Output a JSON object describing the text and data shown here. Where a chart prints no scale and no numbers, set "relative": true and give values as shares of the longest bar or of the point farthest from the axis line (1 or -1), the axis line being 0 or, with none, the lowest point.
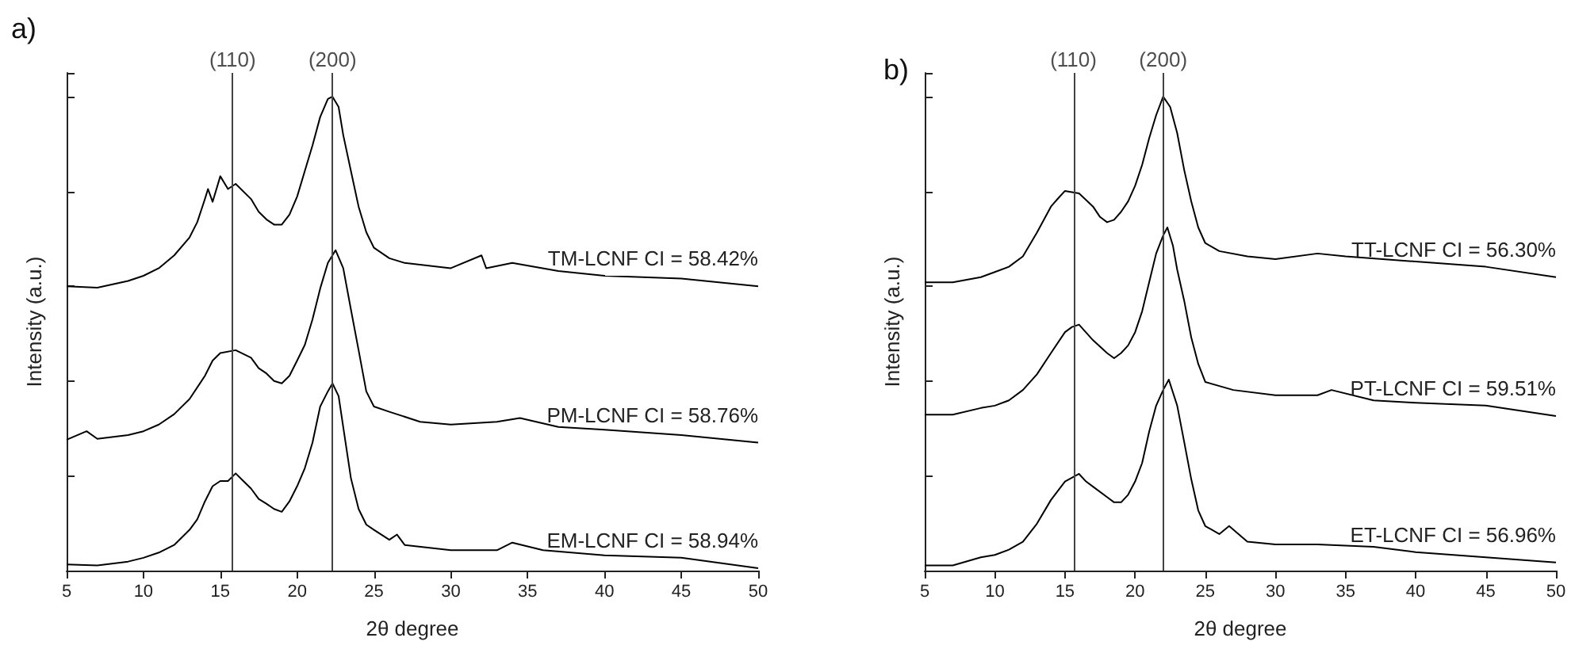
{
  "chart_data": [
    {
      "type": "line",
      "title": "a)",
      "xlabel": "2θ degree",
      "ylabel": "Intensity (a.u.)",
      "relative": true,
      "xlim": [
        5,
        50
      ],
      "xticks": [
        5,
        10,
        15,
        20,
        25,
        30,
        35,
        40,
        45,
        50
      ],
      "tick_labels": "x",
      "marker": "none",
      "line_style": "solid",
      "grid": false,
      "ref_lines": [
        {
          "axis": "x",
          "value": 15.8
        },
        {
          "axis": "x",
          "value": 22.3
        }
      ],
      "annotations": [
        {
          "text": "(110)",
          "x": 15.8,
          "y": 1.05
        },
        {
          "text": "(200)",
          "x": 22.3,
          "y": 1.05
        }
      ],
      "series": [
        {
          "name": "TM-LCNF CI = 58.42%",
          "color": "#000000",
          "x": [
            5,
            7,
            9,
            10,
            11,
            12,
            13,
            13.5,
            14,
            14.2,
            14.5,
            15,
            15.5,
            16,
            17,
            17.5,
            18,
            18.5,
            19,
            19.5,
            20,
            20.5,
            21,
            21.5,
            22,
            22.3,
            22.7,
            23,
            23.5,
            24,
            24.5,
            25,
            26,
            27,
            30,
            32,
            32.3,
            34,
            37,
            40,
            45,
            50
          ],
          "values": [
            0.6,
            0.597,
            0.611,
            0.622,
            0.638,
            0.665,
            0.703,
            0.735,
            0.784,
            0.805,
            0.778,
            0.832,
            0.805,
            0.816,
            0.784,
            0.757,
            0.741,
            0.73,
            0.73,
            0.751,
            0.789,
            0.843,
            0.897,
            0.957,
            0.995,
            1,
            0.978,
            0.919,
            0.843,
            0.768,
            0.714,
            0.681,
            0.659,
            0.649,
            0.638,
            0.665,
            0.638,
            0.649,
            0.632,
            0.622,
            0.616,
            0.6
          ]
        },
        {
          "name": "PM-LCNF CI = 58.76%",
          "color": "#000000",
          "x": [
            5,
            6.3,
            7,
            9,
            10,
            11,
            12,
            13,
            14,
            14.5,
            15,
            16,
            17,
            17.5,
            18,
            18.5,
            19,
            19.5,
            20,
            20.5,
            21,
            21.5,
            22,
            22.5,
            23,
            23.5,
            24,
            24.5,
            25,
            26,
            28,
            30,
            33,
            34.5,
            37,
            40,
            45,
            50
          ],
          "values": [
            0.276,
            0.294,
            0.278,
            0.286,
            0.294,
            0.308,
            0.33,
            0.362,
            0.411,
            0.443,
            0.459,
            0.465,
            0.449,
            0.427,
            0.416,
            0.4,
            0.395,
            0.411,
            0.443,
            0.476,
            0.53,
            0.595,
            0.649,
            0.676,
            0.638,
            0.551,
            0.465,
            0.378,
            0.346,
            0.335,
            0.314,
            0.308,
            0.314,
            0.322,
            0.303,
            0.297,
            0.286,
            0.27
          ]
        },
        {
          "name": "EM-LCNF CI = 58.94%",
          "color": "#000000",
          "x": [
            5,
            7,
            9,
            10,
            11,
            12,
            13,
            13.5,
            14,
            14.5,
            15,
            15.5,
            16,
            16.5,
            17,
            17.5,
            18,
            18.5,
            19,
            19.5,
            20,
            20.5,
            21,
            21.5,
            22,
            22.3,
            22.7,
            23,
            23.5,
            24,
            24.5,
            25,
            26,
            26.5,
            27,
            30,
            33,
            34,
            36,
            40,
            45,
            50
          ],
          "values": [
            0.013,
            0.011,
            0.019,
            0.027,
            0.038,
            0.054,
            0.086,
            0.108,
            0.146,
            0.178,
            0.189,
            0.189,
            0.205,
            0.189,
            0.173,
            0.151,
            0.141,
            0.13,
            0.124,
            0.146,
            0.178,
            0.216,
            0.27,
            0.346,
            0.378,
            0.395,
            0.368,
            0.303,
            0.195,
            0.13,
            0.097,
            0.086,
            0.065,
            0.076,
            0.054,
            0.043,
            0.043,
            0.059,
            0.043,
            0.032,
            0.027,
            0.005
          ]
        }
      ]
    },
    {
      "type": "line",
      "title": "b)",
      "xlabel": "2θ degree",
      "ylabel": "Intensity (a.u.)",
      "relative": true,
      "xlim": [
        5,
        50
      ],
      "xticks": [
        5,
        10,
        15,
        20,
        25,
        30,
        35,
        40,
        45,
        50
      ],
      "tick_labels": "x",
      "marker": "none",
      "line_style": "solid",
      "grid": false,
      "ref_lines": [
        {
          "axis": "x",
          "value": 15.6
        },
        {
          "axis": "x",
          "value": 22
        }
      ],
      "annotations": [
        {
          "text": "(110)",
          "x": 15.6,
          "y": 1.05
        },
        {
          "text": "(200)",
          "x": 22,
          "y": 1.05
        }
      ],
      "series": [
        {
          "name": "TT-LCNF CI = 56.30%",
          "color": "#000000",
          "x": [
            5,
            7,
            9,
            10,
            11,
            12,
            13,
            14,
            14.5,
            15,
            16,
            17,
            17.5,
            18,
            18.5,
            19,
            19.5,
            20,
            20.5,
            21,
            21.5,
            22,
            22.5,
            23,
            23.5,
            24,
            24.5,
            25,
            26,
            28,
            30,
            33,
            35,
            40,
            45,
            50
          ],
          "values": [
            0.608,
            0.608,
            0.619,
            0.63,
            0.641,
            0.663,
            0.713,
            0.768,
            0.785,
            0.801,
            0.796,
            0.768,
            0.746,
            0.735,
            0.74,
            0.757,
            0.779,
            0.812,
            0.856,
            0.912,
            0.961,
            1,
            0.978,
            0.923,
            0.845,
            0.779,
            0.724,
            0.691,
            0.674,
            0.663,
            0.657,
            0.669,
            0.663,
            0.652,
            0.641,
            0.619
          ]
        },
        {
          "name": "PT-LCNF CI = 59.51%",
          "color": "#000000",
          "x": [
            5,
            7,
            9,
            10,
            11,
            12,
            13,
            14,
            15,
            15.5,
            16,
            17,
            18,
            18.5,
            19,
            19.5,
            20,
            20.5,
            21,
            21.5,
            22,
            22.3,
            22.7,
            23,
            23.5,
            24,
            24.5,
            25,
            27,
            30,
            33,
            34,
            37,
            40,
            45,
            50
          ],
          "values": [
            0.329,
            0.329,
            0.343,
            0.348,
            0.359,
            0.381,
            0.414,
            0.459,
            0.503,
            0.514,
            0.519,
            0.486,
            0.459,
            0.448,
            0.459,
            0.475,
            0.503,
            0.547,
            0.608,
            0.669,
            0.707,
            0.724,
            0.685,
            0.635,
            0.569,
            0.492,
            0.436,
            0.398,
            0.381,
            0.37,
            0.37,
            0.381,
            0.359,
            0.354,
            0.348,
            0.326
          ]
        },
        {
          "name": "ET-LCNF CI = 56.96%",
          "color": "#000000",
          "x": [
            5,
            7,
            9,
            10,
            11,
            12,
            13,
            14,
            15,
            16,
            16.5,
            17,
            18,
            18.5,
            19,
            19.5,
            20,
            20.5,
            21,
            21.5,
            22,
            22.4,
            23,
            23.5,
            24,
            24.5,
            25,
            26,
            26.7,
            28,
            30,
            33,
            37,
            40,
            45,
            50
          ],
          "values": [
            0.011,
            0.011,
            0.028,
            0.033,
            0.044,
            0.061,
            0.099,
            0.149,
            0.188,
            0.204,
            0.188,
            0.177,
            0.155,
            0.144,
            0.144,
            0.16,
            0.188,
            0.227,
            0.293,
            0.348,
            0.381,
            0.403,
            0.348,
            0.271,
            0.193,
            0.127,
            0.094,
            0.077,
            0.094,
            0.061,
            0.055,
            0.055,
            0.05,
            0.039,
            0.028,
            0.017
          ]
        }
      ]
    }
  ]
}
